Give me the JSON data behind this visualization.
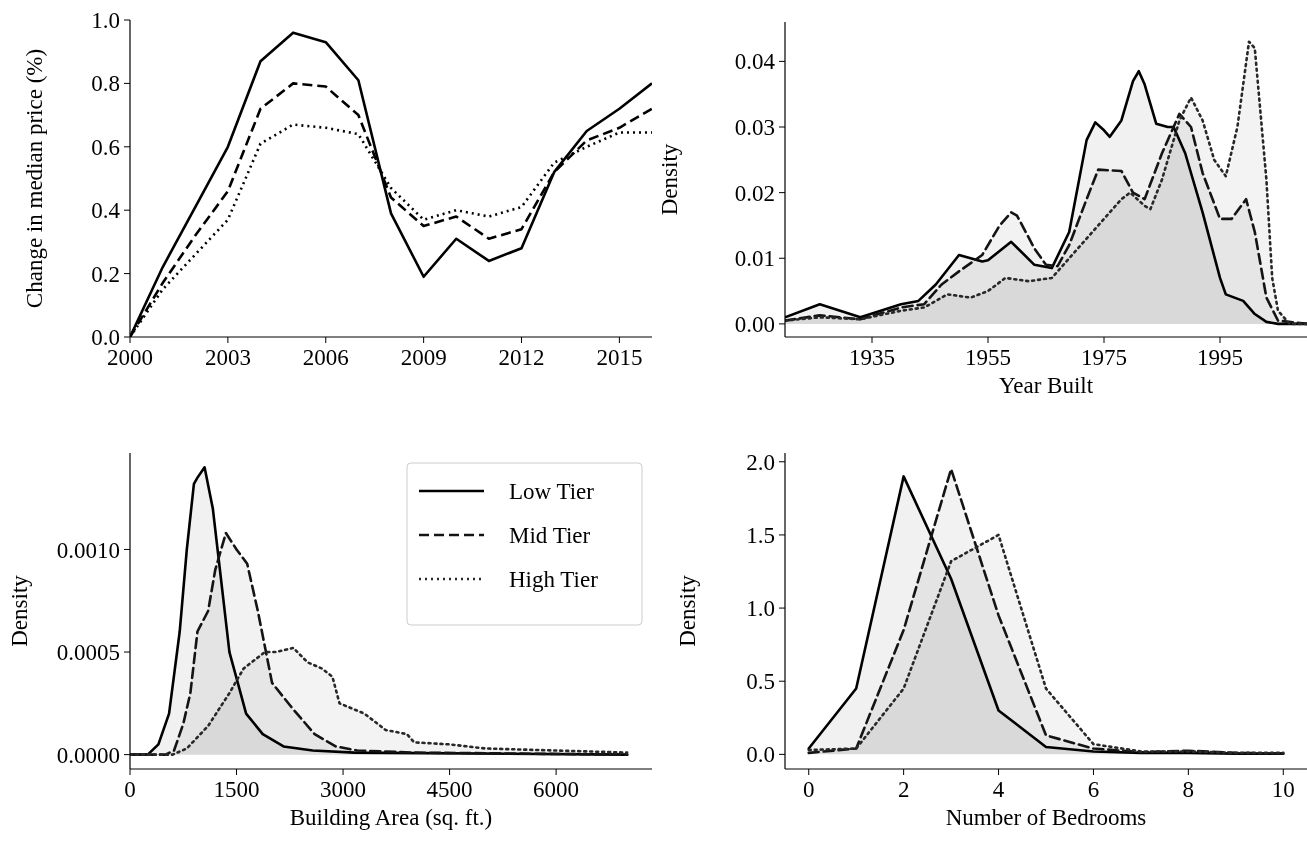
{
  "chart_data": [
    {
      "type": "line",
      "ylabel": "Change in median price (%)",
      "x": [
        2000,
        2001,
        2002,
        2003,
        2004,
        2005,
        2006,
        2007,
        2008,
        2009,
        2010,
        2011,
        2012,
        2013,
        2014,
        2015,
        2016
      ],
      "xlim": [
        2000,
        2016
      ],
      "xticks": [
        2000,
        2003,
        2006,
        2009,
        2012,
        2015
      ],
      "ylim": [
        0,
        1
      ],
      "yticks": [
        {
          "value": 0,
          "label": "0.0"
        },
        {
          "value": 0.2,
          "label": "0.2"
        },
        {
          "value": 0.4,
          "label": "0.4"
        },
        {
          "value": 0.6,
          "label": "0.6"
        },
        {
          "value": 0.8,
          "label": "0.8"
        },
        {
          "value": 1,
          "label": "1.0"
        }
      ],
      "series": [
        {
          "color": "#000000",
          "line_style": "solid",
          "values": [
            0,
            0.22,
            0.41,
            0.6,
            0.87,
            0.96,
            0.93,
            0.81,
            0.39,
            0.19,
            0.31,
            0.24,
            0.28,
            0.52,
            0.65,
            0.72,
            0.8
          ]
        },
        {
          "color": "#000000",
          "line_style": "dashed",
          "values": [
            0,
            0.17,
            0.32,
            0.46,
            0.72,
            0.8,
            0.79,
            0.7,
            0.44,
            0.35,
            0.38,
            0.31,
            0.34,
            0.52,
            0.62,
            0.66,
            0.72
          ]
        },
        {
          "color": "#000000",
          "line_style": "dotted",
          "values": [
            0,
            0.15,
            0.26,
            0.37,
            0.61,
            0.67,
            0.66,
            0.64,
            0.47,
            0.37,
            0.4,
            0.38,
            0.41,
            0.55,
            0.6,
            0.645,
            0.645
          ]
        }
      ]
    },
    {
      "type": "area",
      "xlabel": "Year Built",
      "ylabel": "Density",
      "xlim": [
        1920,
        2010
      ],
      "xticks": [
        1935,
        1955,
        1975,
        1995
      ],
      "ylim": [
        -0.002,
        0.046
      ],
      "yticks": [
        {
          "value": 0,
          "label": "0.00"
        },
        {
          "value": 0.01,
          "label": "0.01"
        },
        {
          "value": 0.02,
          "label": "0.02"
        },
        {
          "value": 0.03,
          "label": "0.03"
        },
        {
          "value": 0.04,
          "label": "0.04"
        }
      ],
      "series": [
        {
          "color": "#000000",
          "line_style": "solid",
          "x": [
            1920,
            1926,
            1933,
            1940,
            1943,
            1946,
            1950,
            1954,
            1955,
            1959,
            1963,
            1966,
            1969,
            1972,
            1973.5,
            1975,
            1976,
            1978,
            1980,
            1981,
            1982,
            1984,
            1986,
            1987,
            1989,
            1992,
            1995,
            1996,
            1997.5,
            1999,
            2001,
            2003,
            2005,
            2010
          ],
          "values": [
            0.001,
            0.003,
            0.001,
            0.003,
            0.0035,
            0.006,
            0.0105,
            0.0095,
            0.0097,
            0.0125,
            0.009,
            0.0085,
            0.014,
            0.028,
            0.0307,
            0.0295,
            0.0285,
            0.031,
            0.037,
            0.0385,
            0.0365,
            0.0305,
            0.03,
            0.03,
            0.026,
            0.017,
            0.007,
            0.0045,
            0.004,
            0.0035,
            0.0015,
            0.0003,
            0,
            0
          ]
        },
        {
          "color": "#141414",
          "line_style": "dashed",
          "x": [
            1920,
            1926,
            1933,
            1940,
            1944,
            1947,
            1950,
            1954,
            1957,
            1959,
            1960,
            1963,
            1965,
            1967,
            1969,
            1972,
            1974,
            1978,
            1980,
            1982,
            1985,
            1988,
            1990,
            1992,
            1995,
            1997,
            1999.5,
            2001,
            2003,
            2005,
            2010
          ],
          "values": [
            0.0005,
            0.0013,
            0.0007,
            0.0025,
            0.003,
            0.006,
            0.008,
            0.0105,
            0.015,
            0.017,
            0.0165,
            0.0115,
            0.009,
            0.0088,
            0.012,
            0.019,
            0.0235,
            0.0233,
            0.02,
            0.019,
            0.026,
            0.032,
            0.03,
            0.023,
            0.016,
            0.016,
            0.019,
            0.014,
            0.004,
            0.0005,
            0
          ]
        },
        {
          "color": "#282828",
          "line_style": "dotted",
          "x": [
            1920,
            1926,
            1933,
            1940,
            1944,
            1948,
            1952,
            1955,
            1958,
            1962,
            1966,
            1970,
            1975,
            1978,
            1979.5,
            1982,
            1983,
            1985,
            1988,
            1990,
            1992,
            1994,
            1996,
            1998,
            2000,
            2001,
            2003,
            2004,
            2005,
            2007,
            2010
          ],
          "values": [
            0.0005,
            0.001,
            0.0007,
            0.002,
            0.0025,
            0.0045,
            0.004,
            0.005,
            0.007,
            0.0065,
            0.007,
            0.011,
            0.016,
            0.019,
            0.02,
            0.018,
            0.0175,
            0.022,
            0.031,
            0.0345,
            0.031,
            0.025,
            0.0225,
            0.03,
            0.043,
            0.042,
            0.022,
            0.007,
            0.002,
            0,
            0
          ]
        }
      ]
    },
    {
      "type": "area",
      "xlabel": "Building Area (sq. ft.)",
      "ylabel": "Density",
      "xlim": [
        0,
        7350
      ],
      "xticks": [
        0,
        1500,
        3000,
        4500,
        6000
      ],
      "ylim": [
        -7e-05,
        0.00147
      ],
      "yticks": [
        {
          "value": 0,
          "label": "0.0000"
        },
        {
          "value": 0.0005,
          "label": "0.0005"
        },
        {
          "value": 0.001,
          "label": "0.0010"
        }
      ],
      "legend": "top right",
      "series": [
        {
          "name": "Low Tier",
          "color": "#000000",
          "line_style": "solid",
          "x": [
            0,
            250,
            400,
            550,
            700,
            800,
            900,
            950,
            1050,
            1166,
            1283,
            1400,
            1518,
            1635,
            1869,
            2162,
            2573,
            3158,
            7000
          ],
          "values": [
            0,
            0,
            5e-05,
            0.0002,
            0.0006,
            0.001,
            0.00132,
            0.00135,
            0.0014,
            0.0012,
            0.00085,
            0.0005,
            0.00035,
            0.0002,
            0.0001,
            4e-05,
            2e-05,
            1e-05,
            0
          ]
        },
        {
          "name": "Mid Tier",
          "color": "#141414",
          "line_style": "dashed",
          "x": [
            0,
            500,
            620,
            750,
            850,
            950,
            1100,
            1200,
            1350,
            1500,
            1650,
            1800,
            2000,
            2300,
            2600,
            2900,
            3200,
            4000,
            7000
          ],
          "values": [
            0,
            0,
            2e-05,
            0.00015,
            0.0003,
            0.0006,
            0.0007,
            0.0009,
            0.00108,
            0.001,
            0.00093,
            0.0007,
            0.00035,
            0.00022,
            0.0001,
            4e-05,
            2e-05,
            1e-05,
            0
          ]
        },
        {
          "name": "High Tier",
          "color": "#282828",
          "line_style": "dotted",
          "x": [
            0,
            600,
            800,
            1100,
            1400,
            1600,
            1900,
            2050,
            2300,
            2500,
            2700,
            2850,
            2950,
            3300,
            3600,
            3900,
            4000,
            4500,
            5000,
            6000,
            7000
          ],
          "values": [
            0,
            0,
            3e-05,
            0.00014,
            0.0003,
            0.00042,
            0.0005,
            0.0005,
            0.00052,
            0.00045,
            0.00042,
            0.00038,
            0.00025,
            0.0002,
            0.00012,
            0.0001,
            6e-05,
            5e-05,
            3e-05,
            2e-05,
            1e-05
          ]
        }
      ]
    },
    {
      "type": "area",
      "xlabel": "Number of Bedrooms",
      "ylabel": "Density",
      "x": [
        0,
        1,
        2,
        3,
        4,
        5,
        6,
        7,
        8,
        9,
        10
      ],
      "xlim": [
        -0.5,
        10.5
      ],
      "xticks": [
        0,
        2,
        4,
        6,
        8,
        10
      ],
      "ylim": [
        -0.1,
        2.06
      ],
      "yticks": [
        {
          "value": 0,
          "label": "0.0"
        },
        {
          "value": 0.5,
          "label": "0.5"
        },
        {
          "value": 1,
          "label": "1.0"
        },
        {
          "value": 1.5,
          "label": "1.5"
        },
        {
          "value": 2,
          "label": "2.0"
        }
      ],
      "series": [
        {
          "color": "#000000",
          "line_style": "solid",
          "values": [
            0.04,
            0.45,
            1.9,
            1.2,
            0.3,
            0.05,
            0.02,
            0.01,
            0.01,
            0.005,
            0.005
          ]
        },
        {
          "color": "#141414",
          "line_style": "dashed",
          "values": [
            0.01,
            0.04,
            0.85,
            1.95,
            0.95,
            0.13,
            0.04,
            0.015,
            0.025,
            0.01,
            0.005
          ]
        },
        {
          "color": "#282828",
          "line_style": "dotted",
          "values": [
            0.03,
            0.04,
            0.45,
            1.32,
            1.5,
            0.45,
            0.07,
            0.02,
            0.02,
            0.01,
            0.01
          ]
        }
      ]
    }
  ]
}
